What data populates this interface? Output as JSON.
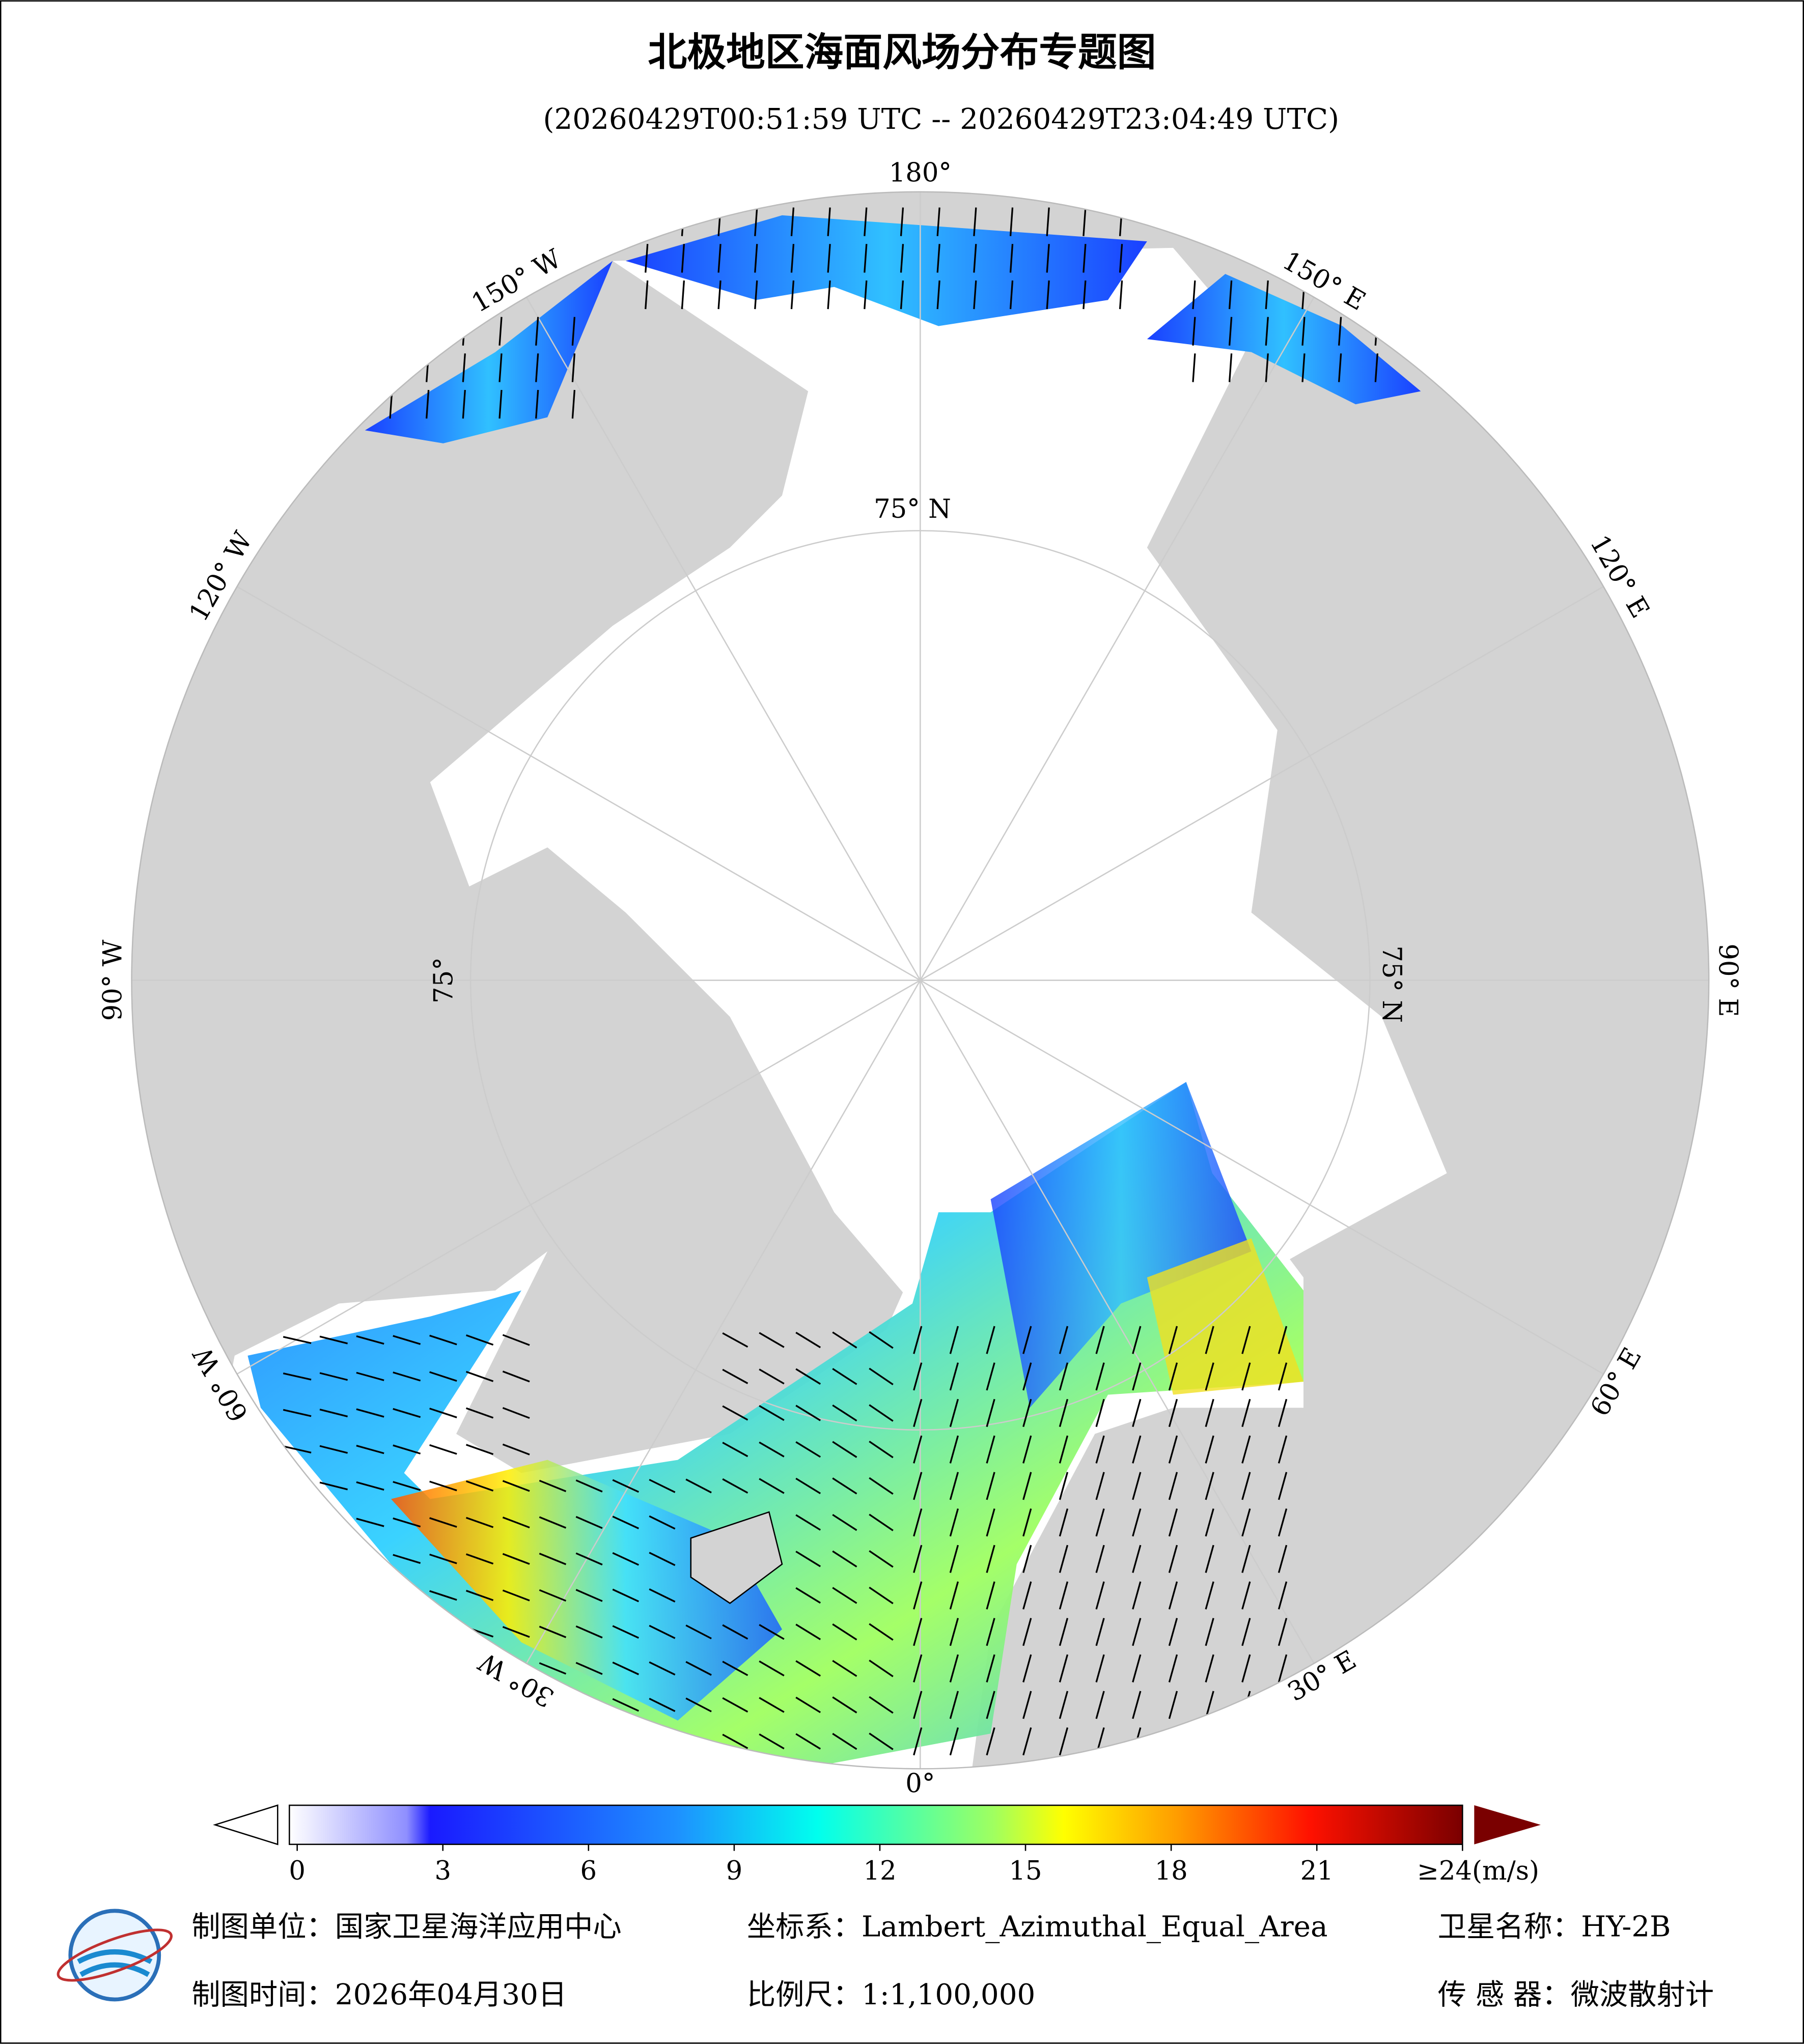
{
  "header": {
    "title": "北极地区海面风场分布专题图",
    "subtitle": "(20260429T00:51:59 UTC -- 20260429T23:04:49 UTC)"
  },
  "map": {
    "longitude_labels": [
      "180°",
      "150° E",
      "120° E",
      "90° E",
      "60° E",
      "30° E",
      "0°",
      "30° W",
      "60° W",
      "90° W",
      "120° W",
      "150° W"
    ],
    "latitude_labels": [
      "75° N",
      "75° N",
      "75°"
    ]
  },
  "colorbar": {
    "range": [
      0,
      24
    ],
    "ticks": [
      0,
      3,
      6,
      9,
      12,
      15,
      18,
      21,
      {
        "value": 24,
        "label": "≥24(m/s)"
      }
    ]
  },
  "footer": {
    "unit": "制图单位：国家卫星海洋应用中心",
    "date": "制图时间：2026年04月30日",
    "crs": "坐标系：Lambert_Azimuthal_Equal_Area",
    "scale": "比例尺：1:1,100,000",
    "satellite": "卫星名称：HY-2B",
    "sensor": "传 感 器：微波散射计"
  }
}
